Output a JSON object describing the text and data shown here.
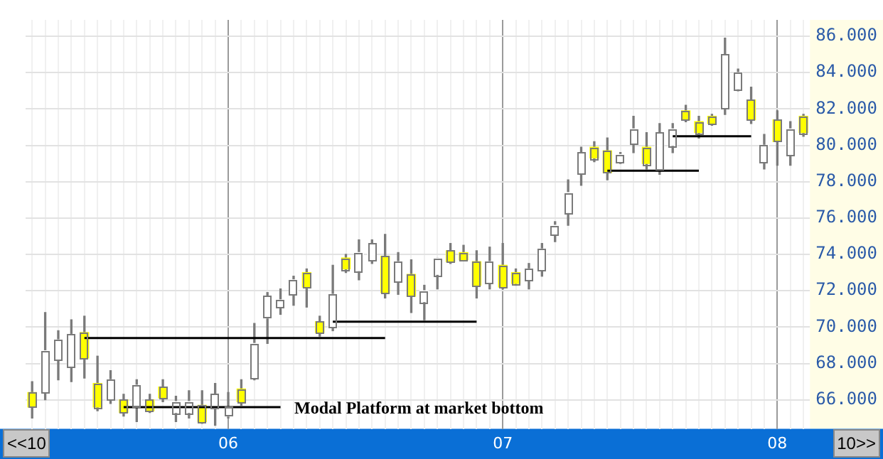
{
  "chart_data": {
    "type": "candlestick",
    "categories": [
      null,
      null,
      null,
      null,
      null,
      null,
      null,
      null,
      null,
      null,
      null,
      null,
      null,
      null,
      null,
      "06",
      null,
      null,
      null,
      null,
      null,
      null,
      null,
      null,
      null,
      null,
      null,
      null,
      null,
      null,
      null,
      null,
      null,
      null,
      null,
      null,
      "07",
      null,
      null,
      null,
      null,
      null,
      null,
      null,
      null,
      null,
      null,
      null,
      null,
      null,
      null,
      null,
      null,
      null,
      null,
      null,
      null,
      "08",
      null,
      null
    ],
    "ohlc": [
      [
        66.4,
        67.0,
        65.0,
        65.6
      ],
      [
        66.4,
        70.8,
        66.0,
        68.7
      ],
      [
        68.2,
        69.8,
        67.1,
        69.3
      ],
      [
        67.8,
        70.4,
        67.0,
        69.6
      ],
      [
        69.7,
        70.6,
        67.2,
        68.3
      ],
      [
        66.9,
        68.4,
        65.4,
        65.6
      ],
      [
        66.0,
        67.6,
        65.8,
        67.1
      ],
      [
        66.0,
        66.3,
        65.1,
        65.3
      ],
      [
        65.6,
        67.1,
        64.8,
        66.8
      ],
      [
        66.0,
        66.3,
        65.3,
        65.4
      ],
      [
        66.7,
        67.1,
        65.9,
        66.1
      ],
      [
        65.3,
        66.2,
        64.8,
        65.9
      ],
      [
        65.3,
        66.5,
        65.0,
        65.9
      ],
      [
        65.7,
        66.5,
        64.7,
        64.8
      ],
      [
        65.5,
        66.9,
        64.6,
        66.3
      ],
      [
        65.1,
        66.4,
        65.0,
        65.6
      ],
      [
        66.6,
        67.1,
        65.7,
        65.9
      ],
      [
        67.2,
        70.2,
        67.1,
        69.1
      ],
      [
        70.5,
        71.9,
        69.1,
        71.7
      ],
      [
        71.1,
        72.1,
        70.7,
        71.5
      ],
      [
        71.8,
        72.8,
        71.2,
        72.6
      ],
      [
        73.0,
        73.2,
        71.1,
        72.2
      ],
      [
        70.3,
        70.6,
        69.5,
        69.7
      ],
      [
        70.0,
        73.4,
        69.8,
        71.8
      ],
      [
        73.8,
        74.0,
        73.0,
        73.2
      ],
      [
        73.1,
        74.8,
        72.6,
        74.1
      ],
      [
        73.7,
        74.8,
        73.5,
        74.6
      ],
      [
        73.9,
        75.1,
        71.6,
        71.9
      ],
      [
        72.5,
        74.1,
        71.8,
        73.6
      ],
      [
        72.9,
        73.7,
        70.8,
        71.7
      ],
      [
        71.4,
        72.3,
        70.4,
        72.0
      ],
      [
        72.9,
        73.8,
        72.1,
        73.8
      ],
      [
        74.2,
        74.6,
        73.5,
        73.6
      ],
      [
        74.1,
        74.5,
        73.7,
        73.7
      ],
      [
        73.6,
        74.2,
        71.6,
        72.3
      ],
      [
        72.4,
        74.4,
        72.1,
        73.6
      ],
      [
        73.4,
        74.6,
        72.1,
        72.2
      ],
      [
        73.0,
        73.2,
        72.3,
        72.4
      ],
      [
        72.6,
        73.5,
        72.1,
        73.2
      ],
      [
        73.1,
        74.6,
        72.8,
        74.3
      ],
      [
        75.1,
        75.8,
        74.7,
        75.6
      ],
      [
        76.3,
        78.1,
        75.6,
        77.4
      ],
      [
        78.4,
        79.9,
        77.8,
        79.6
      ],
      [
        79.9,
        80.2,
        79.1,
        79.3
      ],
      [
        79.7,
        80.4,
        78.1,
        78.5
      ],
      [
        79.1,
        79.6,
        79.0,
        79.5
      ],
      [
        80.1,
        81.6,
        79.6,
        80.9
      ],
      [
        79.9,
        80.7,
        78.7,
        79.0
      ],
      [
        78.7,
        81.2,
        78.4,
        80.7
      ],
      [
        80.0,
        81.2,
        79.6,
        80.9
      ],
      [
        81.9,
        82.2,
        81.3,
        81.4
      ],
      [
        81.3,
        81.6,
        80.4,
        80.7
      ],
      [
        81.6,
        81.7,
        81.1,
        81.2
      ],
      [
        82.0,
        85.9,
        81.7,
        85.0
      ],
      [
        83.1,
        84.2,
        83.0,
        84.0
      ],
      [
        82.5,
        83.2,
        81.2,
        81.4
      ],
      [
        79.1,
        80.6,
        78.7,
        80.0
      ],
      [
        81.4,
        81.9,
        78.9,
        80.2
      ],
      [
        79.5,
        81.3,
        78.9,
        80.9
      ],
      [
        81.6,
        81.7,
        80.5,
        80.7
      ]
    ],
    "colors": [
      "#ffff00",
      "#ffffff",
      "#ffffff",
      "#ffffff",
      "#ffff00",
      "#ffff00",
      "#ffffff",
      "#ffff00",
      "#ffffff",
      "#ffff00",
      "#ffff00",
      "#ffffff",
      "#ffffff",
      "#ffff00",
      "#ffffff",
      "#ffffff",
      "#ffff00",
      "#ffffff",
      "#ffffff",
      "#ffffff",
      "#ffffff",
      "#ffff00",
      "#ffff00",
      "#ffffff",
      "#ffff00",
      "#ffffff",
      "#ffffff",
      "#ffff00",
      "#ffffff",
      "#ffff00",
      "#ffffff",
      "#ffffff",
      "#ffff00",
      "#ffff00",
      "#ffff00",
      "#ffffff",
      "#ffff00",
      "#ffff00",
      "#ffffff",
      "#ffffff",
      "#ffffff",
      "#ffffff",
      "#ffffff",
      "#ffff00",
      "#ffff00",
      "#ffffff",
      "#ffffff",
      "#ffff00",
      "#ffffff",
      "#ffffff",
      "#ffff00",
      "#ffff00",
      "#ffff00",
      "#ffffff",
      "#ffffff",
      "#ffff00",
      "#ffffff",
      "#ffff00",
      "#ffffff",
      "#ffff00"
    ],
    "series": [
      {
        "type": "line",
        "values": [
          null,
          null,
          null,
          null,
          69.4,
          69.4,
          69.4,
          69.4,
          69.4,
          69.4,
          69.4,
          69.4,
          69.4,
          69.4,
          69.4,
          69.4,
          69.4,
          69.4,
          69.4,
          69.4,
          69.4,
          69.4,
          69.4,
          69.4,
          69.4,
          69.4,
          69.4,
          69.4,
          null,
          null,
          null,
          null,
          null,
          null,
          null,
          null,
          null,
          null,
          null,
          null,
          null,
          null,
          null,
          null,
          null,
          null,
          null,
          null,
          null,
          null,
          null,
          null,
          null,
          null,
          null,
          null,
          null,
          null,
          null,
          null
        ],
        "color": "#000000"
      },
      {
        "type": "line",
        "values": [
          null,
          null,
          null,
          null,
          null,
          null,
          null,
          null,
          null,
          null,
          null,
          null,
          null,
          null,
          null,
          null,
          null,
          null,
          null,
          null,
          null,
          null,
          null,
          70.3,
          70.3,
          70.3,
          70.3,
          70.3,
          70.3,
          70.3,
          70.3,
          70.3,
          70.3,
          70.3,
          70.3,
          null,
          null,
          null,
          null,
          null,
          null,
          null,
          null,
          null,
          null,
          null,
          null,
          null,
          null,
          null,
          null,
          null,
          null,
          null,
          null,
          null,
          null,
          null,
          null,
          null
        ],
        "color": "#000000"
      },
      {
        "type": "line",
        "values": [
          null,
          null,
          null,
          null,
          null,
          null,
          null,
          65.6,
          65.6,
          65.6,
          65.6,
          65.6,
          65.6,
          65.6,
          65.6,
          65.6,
          65.6,
          65.6,
          65.6,
          65.6,
          null,
          null,
          null,
          null,
          null,
          null,
          null,
          null,
          null,
          null,
          null,
          null,
          null,
          null,
          null,
          null,
          null,
          null,
          null,
          null,
          null,
          null,
          null,
          null,
          null,
          null,
          null,
          null,
          null,
          null,
          null,
          null,
          null,
          null,
          null,
          null,
          null,
          null,
          null,
          null
        ],
        "color": "#000000"
      },
      {
        "type": "line",
        "values": [
          null,
          null,
          null,
          null,
          null,
          null,
          null,
          null,
          null,
          null,
          null,
          null,
          null,
          null,
          null,
          null,
          null,
          null,
          null,
          null,
          null,
          null,
          null,
          null,
          null,
          null,
          null,
          null,
          null,
          null,
          null,
          null,
          null,
          null,
          null,
          null,
          null,
          null,
          null,
          null,
          null,
          null,
          null,
          null,
          78.6,
          78.6,
          78.6,
          78.6,
          78.6,
          78.6,
          78.6,
          78.6,
          null,
          null,
          null,
          null,
          null,
          null,
          null,
          null
        ],
        "color": "#000000"
      },
      {
        "type": "line",
        "values": [
          null,
          null,
          null,
          null,
          null,
          null,
          null,
          null,
          null,
          null,
          null,
          null,
          null,
          null,
          null,
          null,
          null,
          null,
          null,
          null,
          null,
          null,
          null,
          null,
          null,
          null,
          null,
          null,
          null,
          null,
          null,
          null,
          null,
          null,
          null,
          null,
          null,
          null,
          null,
          null,
          null,
          null,
          null,
          null,
          null,
          null,
          null,
          null,
          null,
          80.5,
          80.5,
          80.5,
          80.5,
          80.5,
          80.5,
          80.5,
          null,
          null,
          null,
          null
        ],
        "color": "#000000"
      }
    ],
    "annotations": [
      "Modal Platform at market bottom",
      "<<10",
      "10>>"
    ],
    "ylim": [
      64.4,
      86.9
    ],
    "yticks": [
      {
        "value": 66,
        "label": "66.000"
      },
      {
        "value": 68,
        "label": "68.000"
      },
      {
        "value": 70,
        "label": "70.000"
      },
      {
        "value": 72,
        "label": "72.000"
      },
      {
        "value": 74,
        "label": "74.000"
      },
      {
        "value": 76,
        "label": "76.000"
      },
      {
        "value": 78,
        "label": "78.000"
      },
      {
        "value": 80,
        "label": "80.000"
      },
      {
        "value": 82,
        "label": "82.000"
      },
      {
        "value": 84,
        "label": "84.000"
      },
      {
        "value": 86,
        "label": "86.000"
      }
    ],
    "grid": true,
    "legend": false,
    "marker": "none",
    "line_style": "solid"
  }
}
